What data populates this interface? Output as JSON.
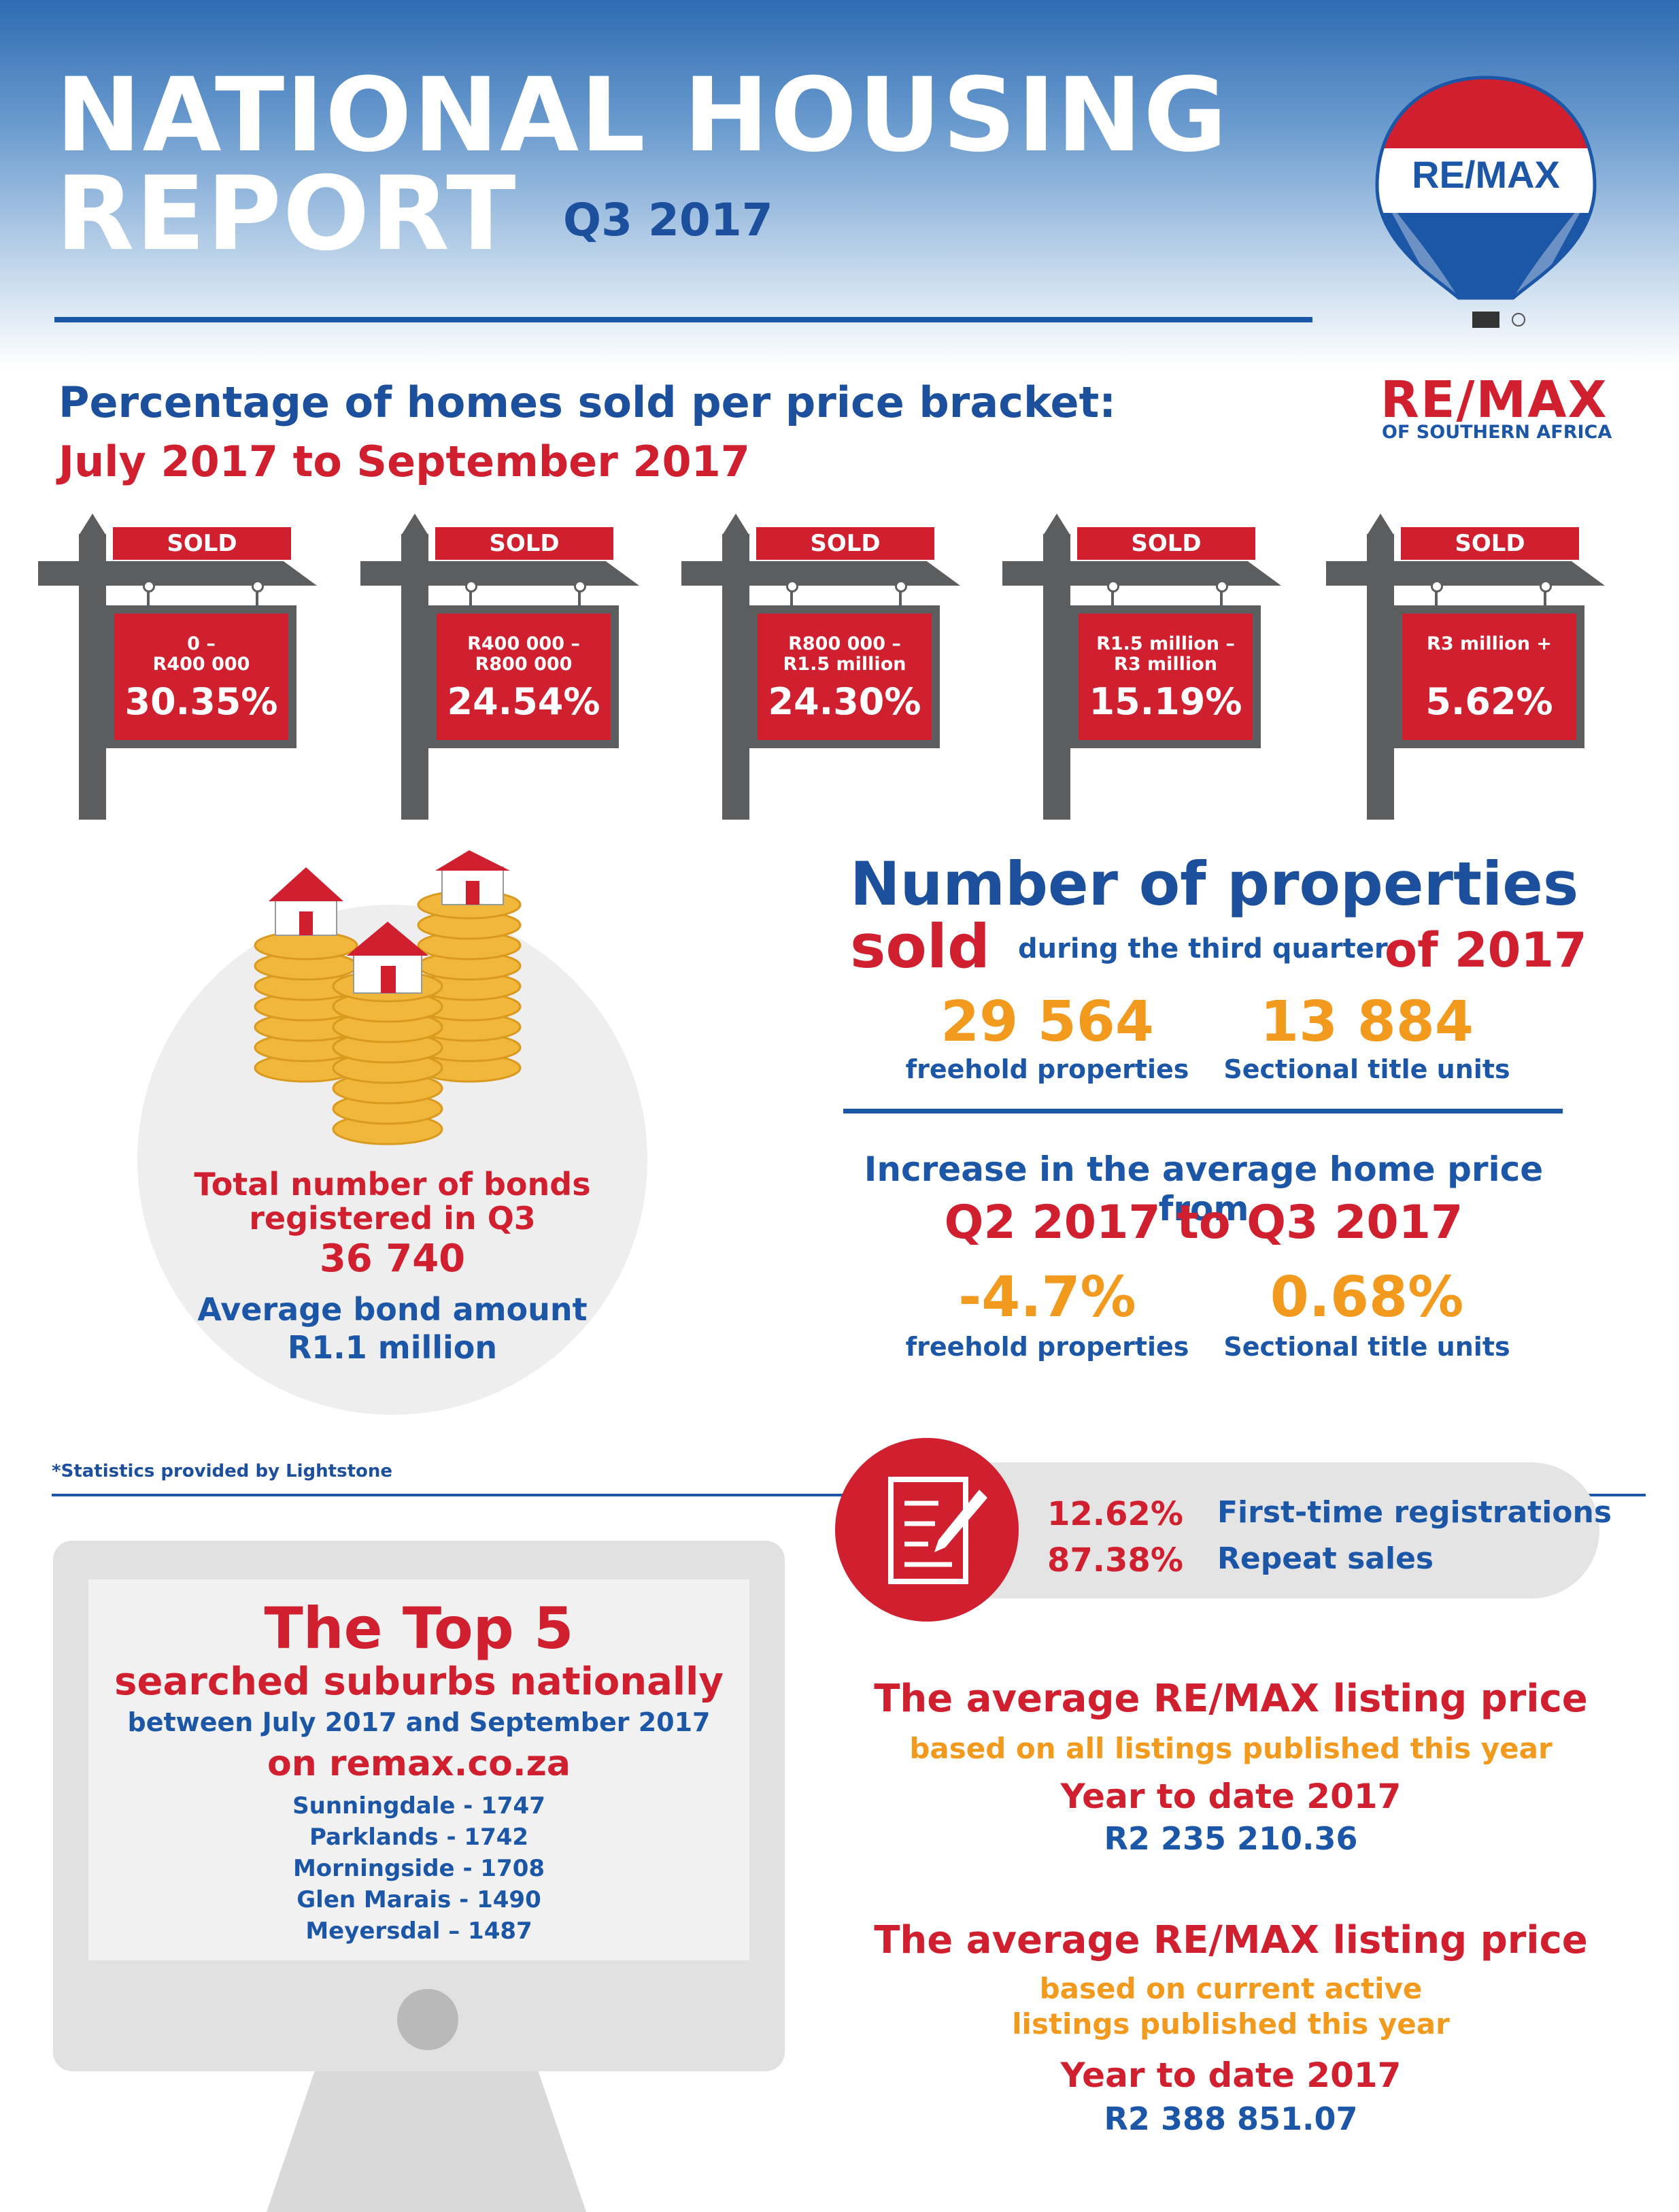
{
  "header": {
    "title_line1": "NATIONAL HOUSING",
    "title_line2": "REPORT",
    "quarter": "Q3 2017"
  },
  "brand": {
    "balloon_text": "RE/MAX",
    "logo_main": "RE/MAX",
    "logo_sub": "OF SOUTHERN AFRICA",
    "colors": {
      "red": "#d0202f",
      "blue": "#1c56a6",
      "orange": "#f29a1d"
    }
  },
  "price_brackets": {
    "heading": "Percentage of homes sold per price bracket:",
    "period": "July 2017 to September 2017",
    "sign_label": "SOLD",
    "items": [
      {
        "range": "0 –\nR400 000",
        "percent": "30.35%"
      },
      {
        "range": "R400 000 –\nR800 000",
        "percent": "24.54%"
      },
      {
        "range": "R800 000 –\nR1.5 million",
        "percent": "24.30%"
      },
      {
        "range": "R1.5 million –\nR3 million",
        "percent": "15.19%"
      },
      {
        "range": "R3 million +",
        "percent": "5.62%"
      }
    ]
  },
  "bonds": {
    "label": "Total number of bonds registered in Q3",
    "value": "36 740",
    "avg_label": "Average bond amount",
    "avg_value": "R1.1 million"
  },
  "properties_sold": {
    "title": "Number of properties",
    "sold_word": "sold",
    "during": "during the third quarter",
    "year": "of 2017",
    "freehold_count": "29 564",
    "freehold_label": "freehold properties",
    "sectional_count": "13 884",
    "sectional_label": "Sectional title units"
  },
  "price_increase": {
    "heading": "Increase in the average home price from",
    "period": "Q2 2017 to Q3 2017",
    "freehold_value": "-4.7%",
    "freehold_label": "freehold properties",
    "sectional_value": "0.68%",
    "sectional_label": "Sectional title units"
  },
  "source_note": "*Statistics provided by Lightstone",
  "registrations": {
    "icon": "document-pen-icon",
    "items": [
      {
        "percent": "12.62%",
        "label": "First-time registrations"
      },
      {
        "percent": "87.38%",
        "label": "Repeat sales"
      }
    ]
  },
  "top5": {
    "title": "The Top 5",
    "subtitle": "searched suburbs nationally",
    "period": "between July 2017 and September 2017",
    "site": "on remax.co.za",
    "suburbs": [
      "Sunningdale - 1747",
      "Parklands - 1742",
      "Morningside - 1708",
      "Glen Marais - 1490",
      "Meyersdal – 1487"
    ]
  },
  "listing_prices": [
    {
      "title": "The average RE/MAX listing price",
      "subtitle": "based on all listings published this year",
      "ytd": "Year to date 2017",
      "value": "R2 235 210.36"
    },
    {
      "title": "The average RE/MAX listing price",
      "subtitle": "based on current active\nlistings published this year",
      "ytd": "Year to date 2017",
      "value": "R2 388 851.07"
    }
  ]
}
